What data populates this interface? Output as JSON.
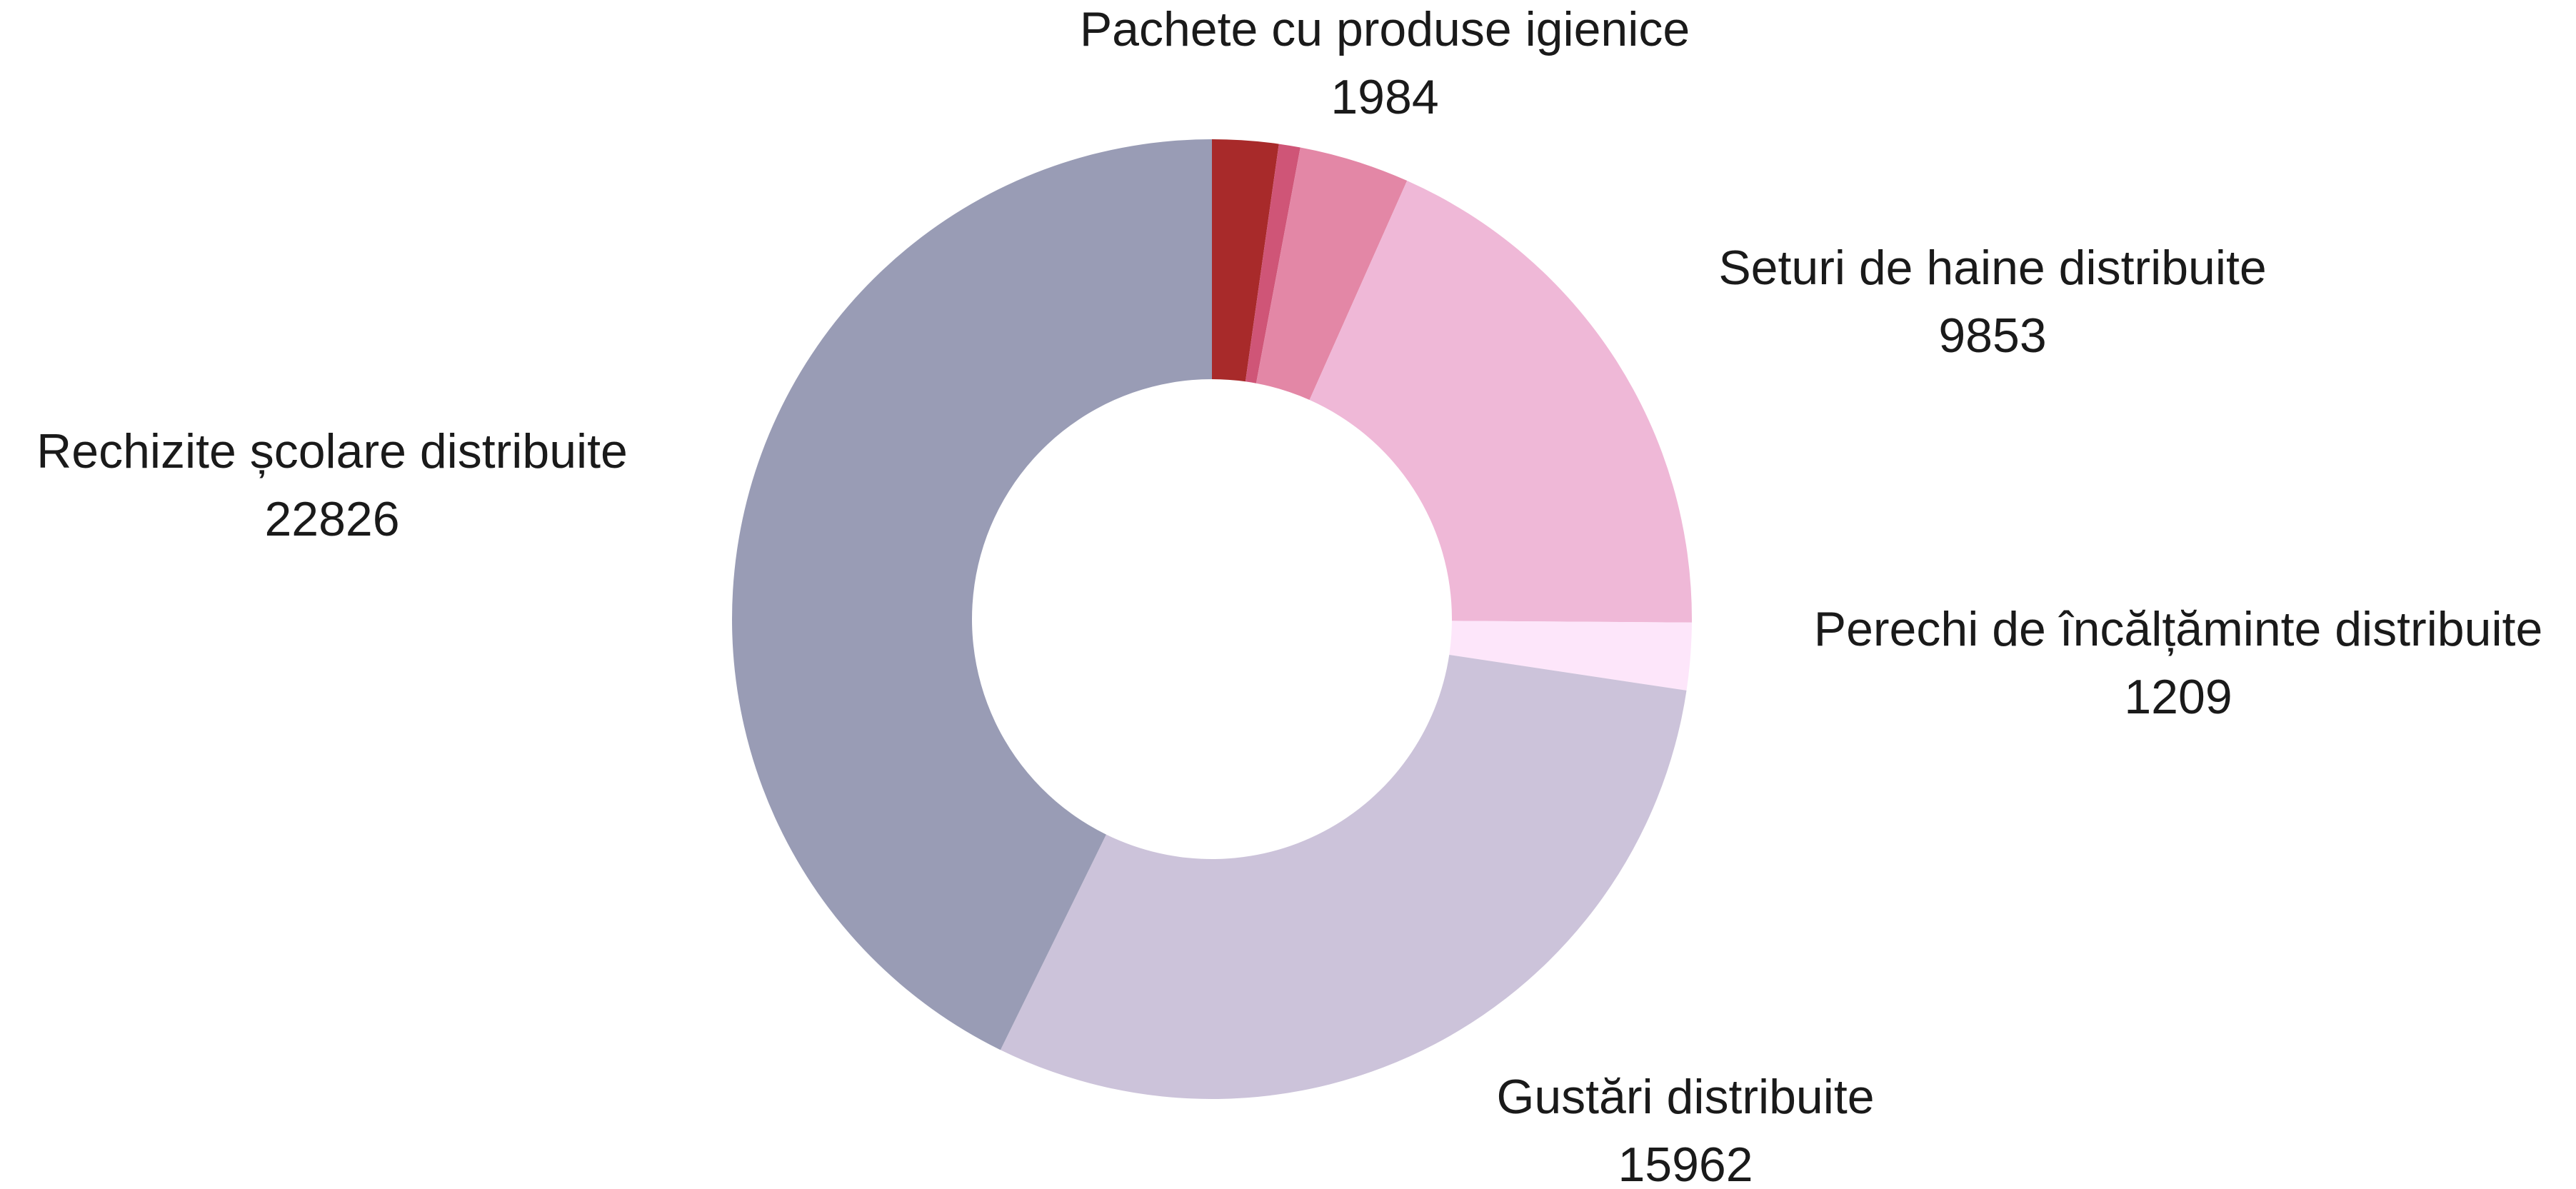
{
  "chart_data": {
    "type": "donut",
    "categories": [
      null,
      null,
      "Pachete cu produse igienice",
      "Seturi de haine distribuite",
      "Perechi de încălțăminte distribuite",
      "Gustări distribuite",
      "Rechizite școlare distribuite"
    ],
    "values": [
      1190,
      385,
      1984,
      9853,
      1209,
      15962,
      22826
    ],
    "colors": [
      "#a82a2a",
      "#cf5577",
      "#e387a6",
      "#efb8d7",
      "#fde6fa",
      "#ccc3da",
      "#999cb5"
    ]
  }
}
